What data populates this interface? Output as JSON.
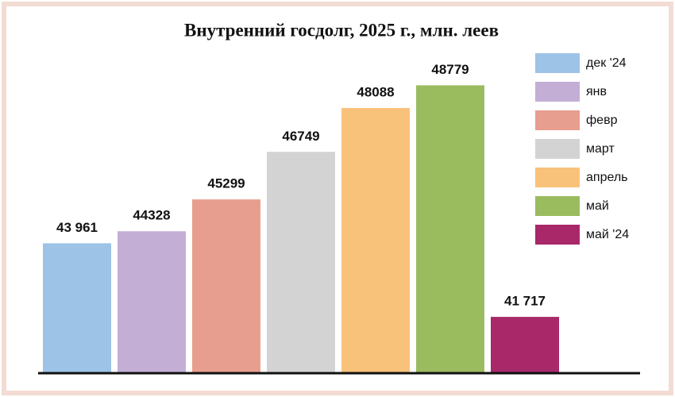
{
  "chart_data": {
    "type": "bar",
    "title": "Внутренний госдолг, 2025 г., млн. леев",
    "categories": [
      "дек '24",
      "янв",
      "февр",
      "март",
      "апрель",
      "май",
      "май '24"
    ],
    "values": [
      43961,
      44328,
      45299,
      46749,
      48088,
      48779,
      41717
    ],
    "value_labels": [
      "43 961",
      "44328",
      "45299",
      "46749",
      "48088",
      "48779",
      "41 717"
    ],
    "colors": [
      "#9dc3e6",
      "#c3aed6",
      "#e89e8e",
      "#d3d3d3",
      "#f9c27a",
      "#9bbb5f",
      "#a8286a"
    ],
    "ylim": [
      40000,
      50000
    ]
  }
}
